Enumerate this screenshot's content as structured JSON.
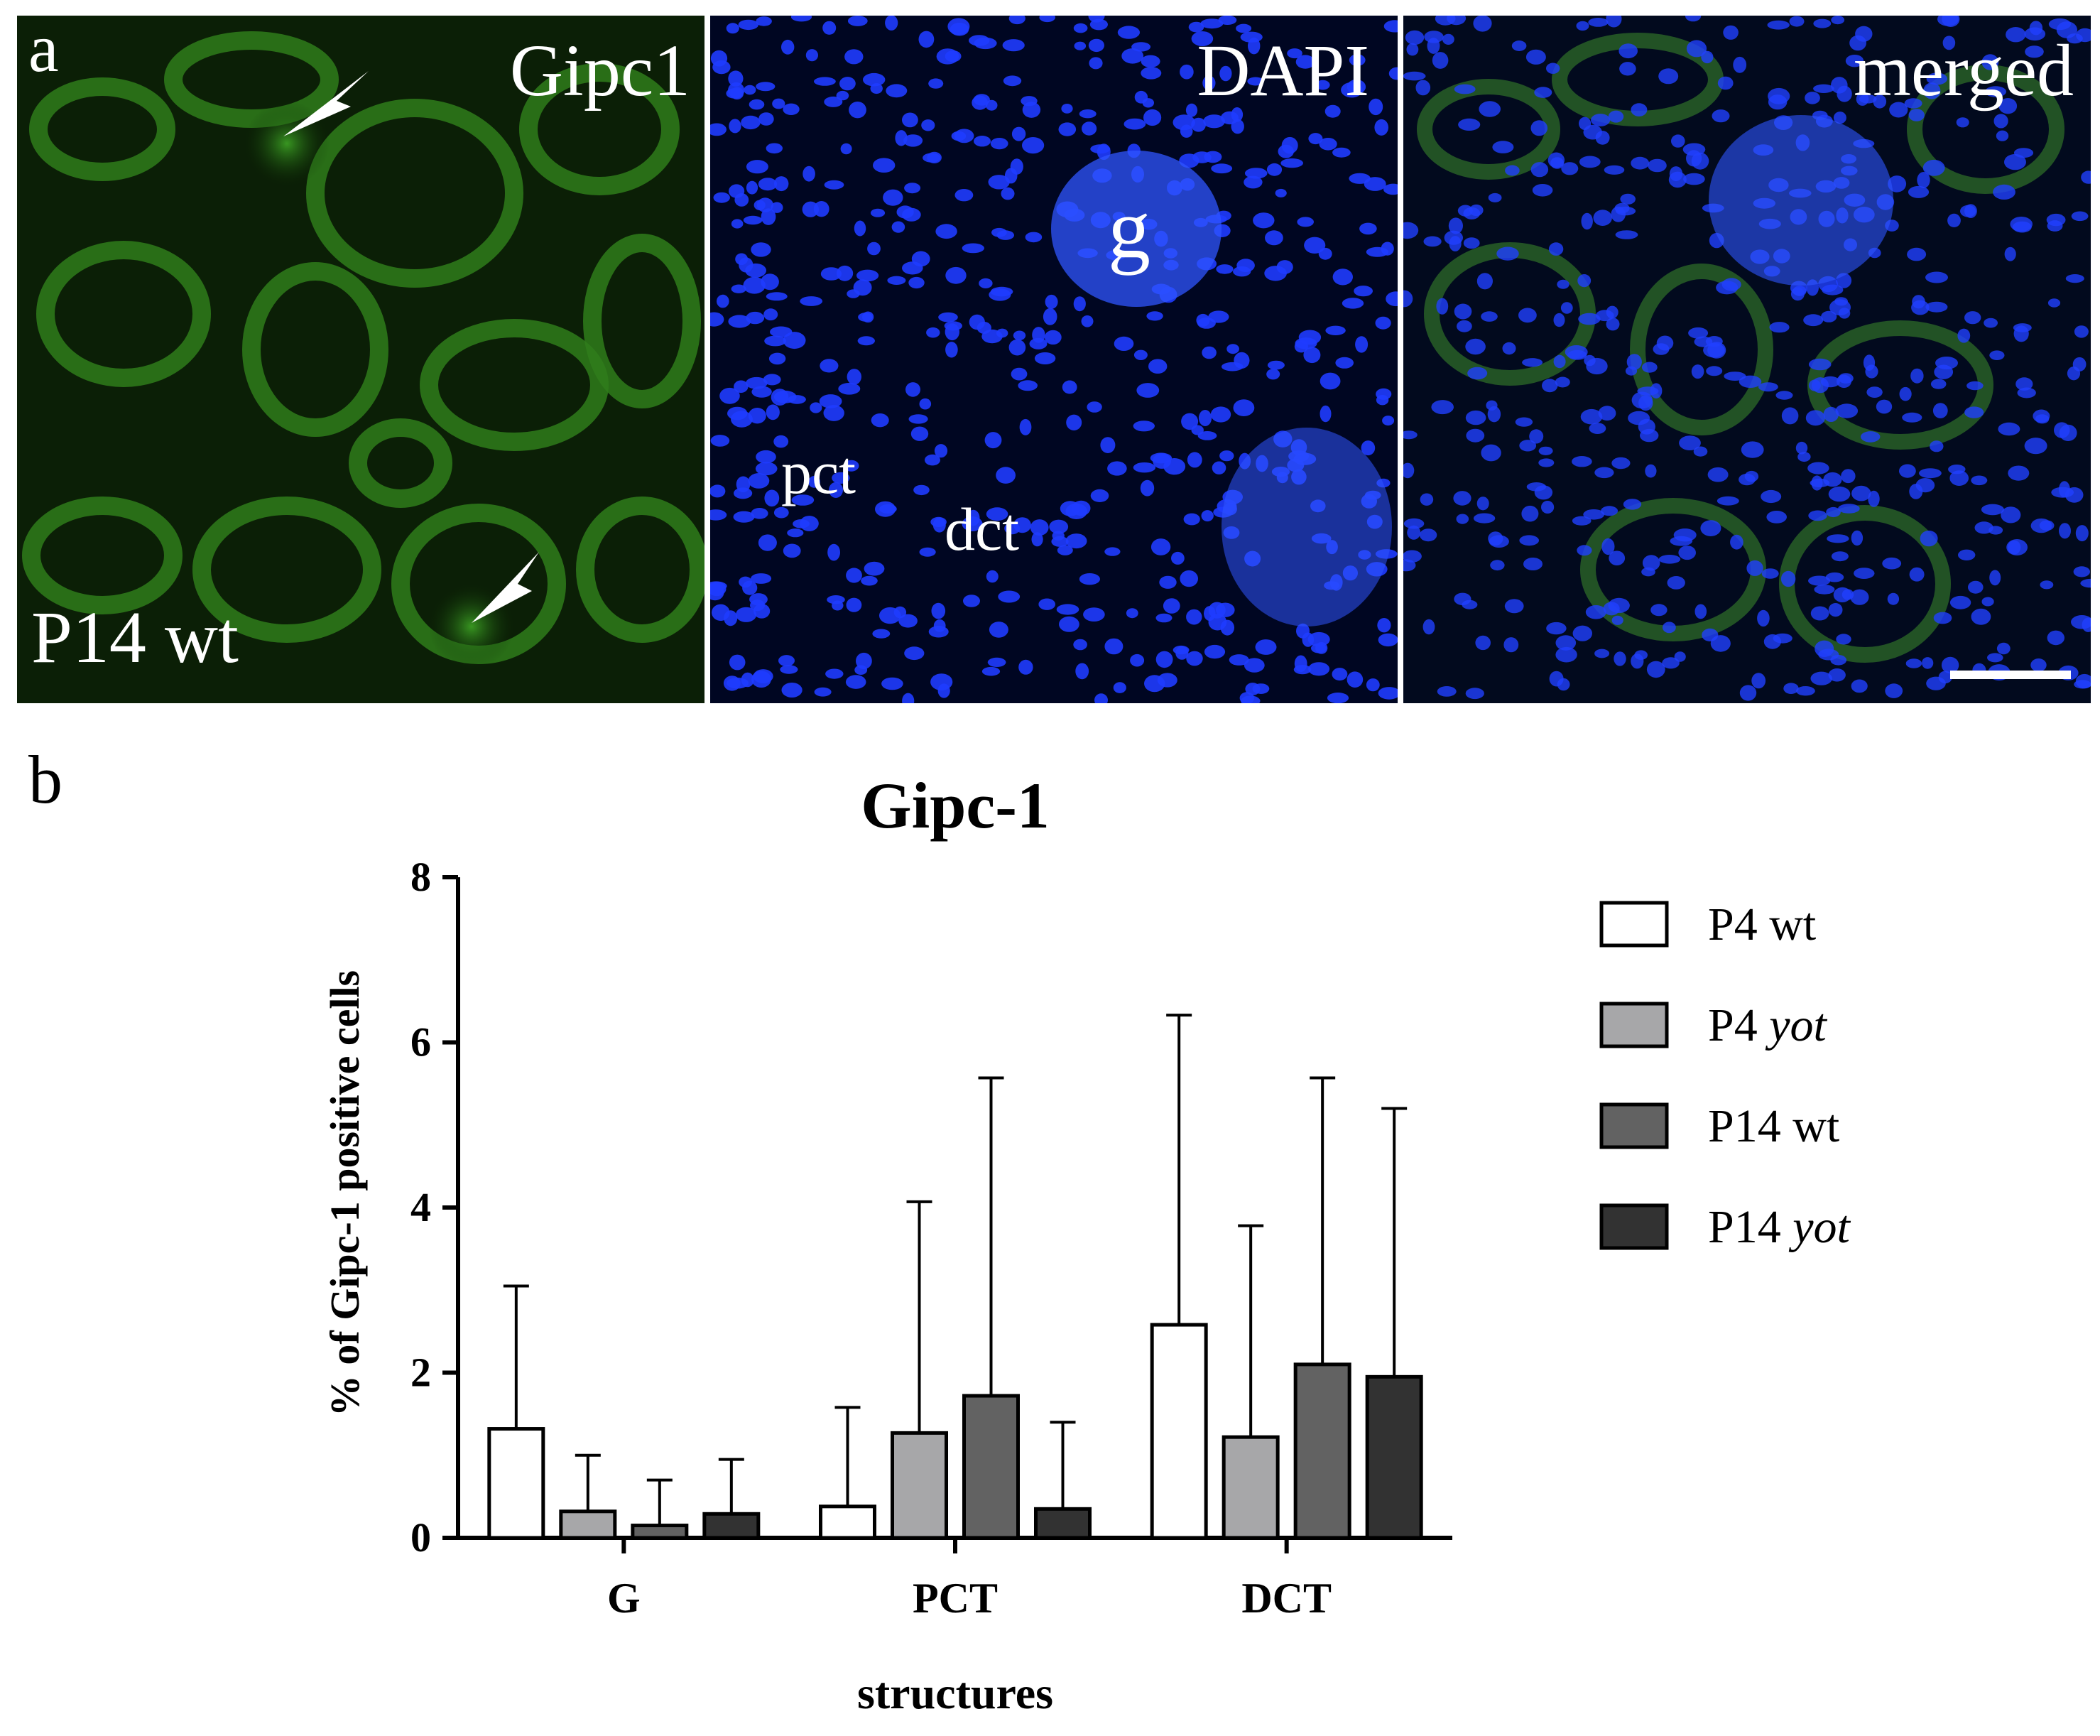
{
  "panel_a": {
    "label": "a",
    "panels": [
      {
        "name": "green",
        "title": "Gipc1",
        "corner_label": "P14 wt",
        "color": "#2f8a1c"
      },
      {
        "name": "blue",
        "title": "DAPI",
        "annotations": [
          "g",
          "pct",
          "dct"
        ],
        "color": "#1f3cff"
      },
      {
        "name": "merged",
        "title": "merged"
      }
    ]
  },
  "panel_b": {
    "label": "b"
  },
  "chart_data": {
    "type": "bar",
    "title": "Gipc-1",
    "xlabel": "structures",
    "ylabel": "% of Gipc-1 positive cells",
    "categories": [
      "G",
      "PCT",
      "DCT"
    ],
    "ylim": [
      0,
      8
    ],
    "yticks": [
      "0",
      "2",
      "4",
      "6",
      "8"
    ],
    "error_bars": "upper, SD",
    "legend_position": "right",
    "series": [
      {
        "name": "P4 wt",
        "name_main": "P4",
        "name_italic": "wt",
        "italic": false,
        "color": "#ffffff",
        "values": [
          1.32,
          0.38,
          2.58
        ],
        "error_top": [
          3.05,
          1.58,
          6.33
        ]
      },
      {
        "name": "P4 yot",
        "name_main": "P4",
        "name_italic": "yot",
        "italic": true,
        "color": "#a7a7a9",
        "values": [
          0.32,
          1.27,
          1.22
        ],
        "error_top": [
          1.0,
          4.07,
          3.78
        ]
      },
      {
        "name": "P14 wt",
        "name_main": "P14",
        "name_italic": "wt",
        "italic": false,
        "color": "#626262",
        "values": [
          0.15,
          1.72,
          2.1
        ],
        "error_top": [
          0.7,
          5.57,
          5.57
        ]
      },
      {
        "name": "P14 yot",
        "name_main": "P14",
        "name_italic": "yot",
        "italic": true,
        "color": "#323232",
        "values": [
          0.29,
          0.35,
          1.95
        ],
        "error_top": [
          0.95,
          1.4,
          5.2
        ]
      }
    ]
  }
}
